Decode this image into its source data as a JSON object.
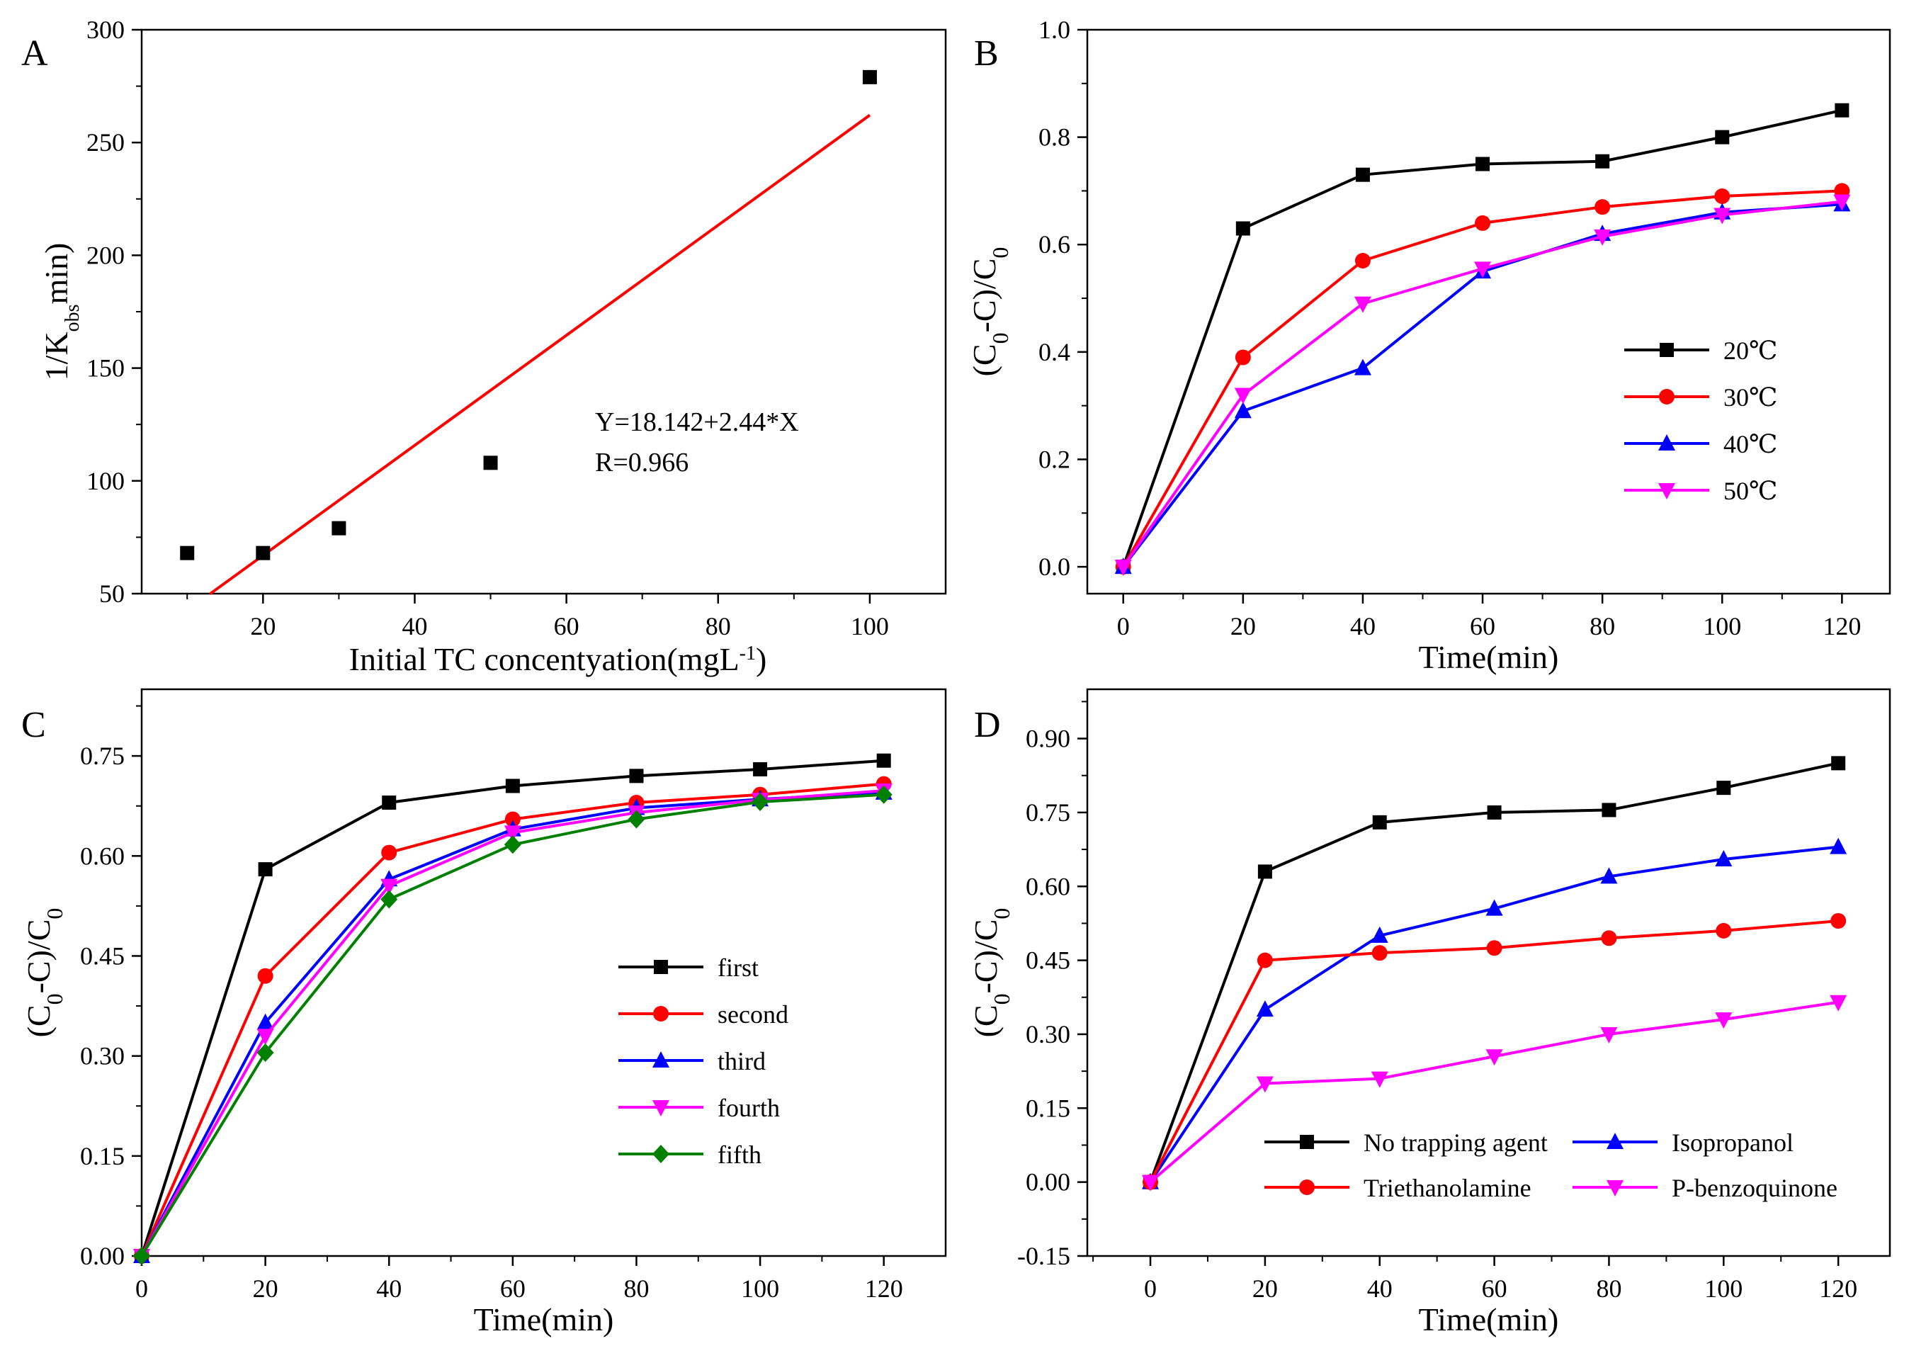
{
  "chart_data": [
    {
      "panel": "A",
      "type": "scatter",
      "xlabel": "Initial TC concentyation(mgL",
      "xlabel_sup": "-1",
      "xlabel_end": ")",
      "ylabel_main": "1/K",
      "ylabel_sub": "obs",
      "ylabel_end": "min)",
      "xlim": [
        4,
        110
      ],
      "ylim": [
        50,
        300
      ],
      "xticks": [
        20,
        40,
        60,
        80,
        100
      ],
      "yticks": [
        50,
        100,
        150,
        200,
        250,
        300
      ],
      "series": [
        {
          "x": [
            10,
            20,
            30,
            50,
            100
          ],
          "y": [
            68,
            68,
            79,
            108,
            279
          ],
          "color": "#000000",
          "marker": "square"
        }
      ],
      "fit_line": {
        "intercept": 18.142,
        "slope": 2.44,
        "x_range": [
          13,
          100
        ],
        "color": "#ff0000"
      },
      "annotation": [
        "Y=18.142+2.44*X",
        "R=0.966"
      ]
    },
    {
      "panel": "B",
      "type": "line",
      "xlabel": "Time(min)",
      "ylabel": "(C0-C)/C0",
      "xlim": [
        -6,
        128
      ],
      "ylim": [
        -0.05,
        1.0
      ],
      "xticks": [
        0,
        20,
        40,
        60,
        80,
        100,
        120
      ],
      "yticks": [
        0.0,
        0.2,
        0.4,
        0.6,
        0.8,
        1.0
      ],
      "ytick_labels": [
        "0.0",
        "0.2",
        "0.4",
        "0.6",
        "0.8",
        "1.0"
      ],
      "x": [
        0,
        20,
        40,
        60,
        80,
        100,
        120
      ],
      "legend_position": "right",
      "series": [
        {
          "name": "20℃",
          "values": [
            0.0,
            0.63,
            0.73,
            0.75,
            0.755,
            0.8,
            0.85
          ],
          "color": "#000000",
          "marker": "square"
        },
        {
          "name": "30℃",
          "values": [
            0.0,
            0.39,
            0.57,
            0.64,
            0.67,
            0.69,
            0.7
          ],
          "color": "#ff0000",
          "marker": "circle"
        },
        {
          "name": "40℃",
          "values": [
            0.0,
            0.29,
            0.37,
            0.55,
            0.62,
            0.66,
            0.675
          ],
          "color": "#0000ff",
          "marker": "triangle-up"
        },
        {
          "name": "50℃",
          "values": [
            0.0,
            0.32,
            0.49,
            0.555,
            0.615,
            0.655,
            0.68
          ],
          "color": "#ff00ff",
          "marker": "triangle-down"
        }
      ]
    },
    {
      "panel": "C",
      "type": "line",
      "xlabel": "Time(min)",
      "ylabel": "(C0-C)/C0",
      "xlim": [
        0,
        130
      ],
      "ylim": [
        0,
        0.85
      ],
      "xticks": [
        0,
        20,
        40,
        60,
        80,
        100,
        120
      ],
      "yticks": [
        0.0,
        0.15,
        0.3,
        0.45,
        0.6,
        0.75
      ],
      "ytick_labels": [
        "0.00",
        "0.15",
        "0.30",
        "0.45",
        "0.60",
        "0.75"
      ],
      "x": [
        0,
        20,
        40,
        60,
        80,
        100,
        120
      ],
      "legend_position": "center-right",
      "series": [
        {
          "name": "first",
          "values": [
            0.0,
            0.58,
            0.68,
            0.705,
            0.72,
            0.73,
            0.743
          ],
          "color": "#000000",
          "marker": "square"
        },
        {
          "name": "second",
          "values": [
            0.0,
            0.42,
            0.605,
            0.655,
            0.68,
            0.692,
            0.708
          ],
          "color": "#ff0000",
          "marker": "circle"
        },
        {
          "name": "third",
          "values": [
            0.0,
            0.35,
            0.565,
            0.64,
            0.672,
            0.685,
            0.695
          ],
          "color": "#0000ff",
          "marker": "triangle-up"
        },
        {
          "name": "fourth",
          "values": [
            0.0,
            0.33,
            0.555,
            0.635,
            0.665,
            0.684,
            0.698
          ],
          "color": "#ff00ff",
          "marker": "triangle-down"
        },
        {
          "name": "fifth",
          "values": [
            0.0,
            0.305,
            0.535,
            0.617,
            0.655,
            0.681,
            0.692
          ],
          "color": "#008000",
          "marker": "diamond"
        }
      ]
    },
    {
      "panel": "D",
      "type": "line",
      "xlabel": "Time(min)",
      "ylabel": "(C0-C)/C0",
      "xlim": [
        -11,
        129
      ],
      "ylim": [
        -0.15,
        1.0
      ],
      "xticks": [
        0,
        20,
        40,
        60,
        80,
        100,
        120
      ],
      "yticks": [
        -0.15,
        0.0,
        0.15,
        0.3,
        0.45,
        0.6,
        0.75,
        0.9
      ],
      "ytick_labels": [
        "-0.15",
        "0.00",
        "0.15",
        "0.30",
        "0.45",
        "0.60",
        "0.75",
        "0.90"
      ],
      "x": [
        0,
        20,
        40,
        60,
        80,
        100,
        120
      ],
      "legend_position": "bottom",
      "series": [
        {
          "name": "No trapping agent",
          "values": [
            0.0,
            0.63,
            0.73,
            0.75,
            0.755,
            0.8,
            0.85
          ],
          "color": "#000000",
          "marker": "square"
        },
        {
          "name": "Isopropanol",
          "values": [
            0.0,
            0.35,
            0.5,
            0.555,
            0.62,
            0.655,
            0.68
          ],
          "color": "#0000ff",
          "marker": "triangle-up"
        },
        {
          "name": "Triethanolamine",
          "values": [
            0.0,
            0.45,
            0.465,
            0.475,
            0.495,
            0.51,
            0.53
          ],
          "color": "#ff0000",
          "marker": "circle"
        },
        {
          "name": "P-benzoquinone",
          "values": [
            0.0,
            0.2,
            0.21,
            0.255,
            0.3,
            0.33,
            0.365
          ],
          "color": "#ff00ff",
          "marker": "triangle-down"
        }
      ]
    }
  ]
}
